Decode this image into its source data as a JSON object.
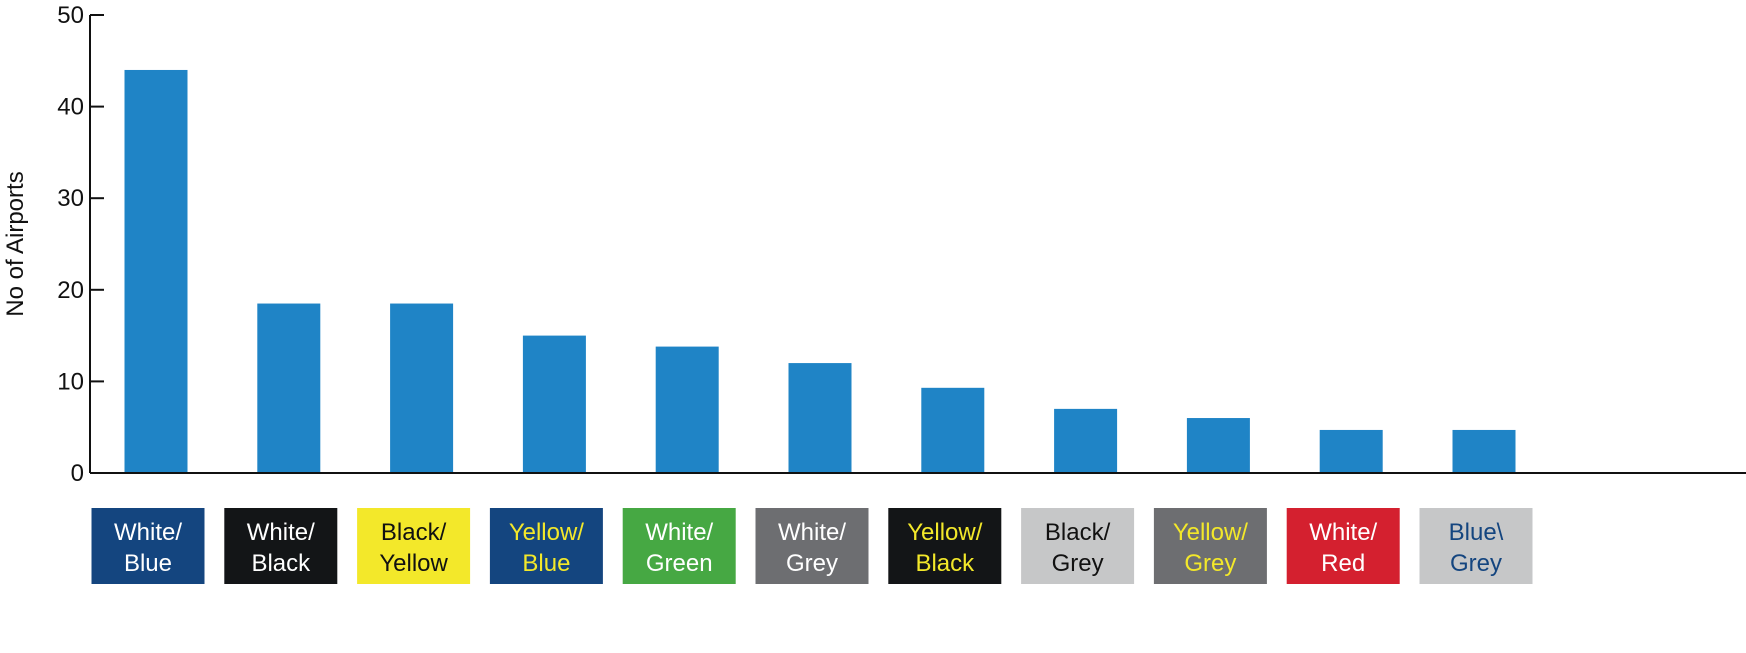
{
  "chart_data": {
    "type": "bar",
    "ylabel": "No of Airports",
    "xlabel": "",
    "title": "",
    "ylim": [
      0,
      50
    ],
    "yticks": [
      0,
      10,
      20,
      30,
      40,
      50
    ],
    "grid": false,
    "bar_color": "#1f84c6",
    "categories": [
      {
        "line1": "White/",
        "line2": "Blue",
        "bg": "#14457f",
        "fg": "#ffffff"
      },
      {
        "line1": "White/",
        "line2": "Black",
        "bg": "#131517",
        "fg": "#ffffff"
      },
      {
        "line1": "Black/",
        "line2": "Yellow",
        "bg": "#f3e82a",
        "fg": "#111111"
      },
      {
        "line1": "Yellow/",
        "line2": "Blue",
        "bg": "#14457f",
        "fg": "#f3e82a"
      },
      {
        "line1": "White/",
        "line2": "Green",
        "bg": "#46a843",
        "fg": "#ffffff"
      },
      {
        "line1": "White/",
        "line2": "Grey",
        "bg": "#6d6e71",
        "fg": "#ffffff"
      },
      {
        "line1": "Yellow/",
        "line2": "Black",
        "bg": "#131517",
        "fg": "#f3e82a"
      },
      {
        "line1": "Black/",
        "line2": "Grey",
        "bg": "#c6c7c8",
        "fg": "#111111"
      },
      {
        "line1": "Yellow/",
        "line2": "Grey",
        "bg": "#6d6e71",
        "fg": "#f3e82a"
      },
      {
        "line1": "White/",
        "line2": "Red",
        "bg": "#d4202f",
        "fg": "#ffffff"
      },
      {
        "line1": "Blue\\",
        "line2": "Grey",
        "bg": "#c6c7c8",
        "fg": "#14457f"
      }
    ],
    "values": [
      44,
      18.5,
      18.5,
      15,
      13.8,
      12,
      9.3,
      7,
      6,
      4.7,
      4.7
    ]
  }
}
